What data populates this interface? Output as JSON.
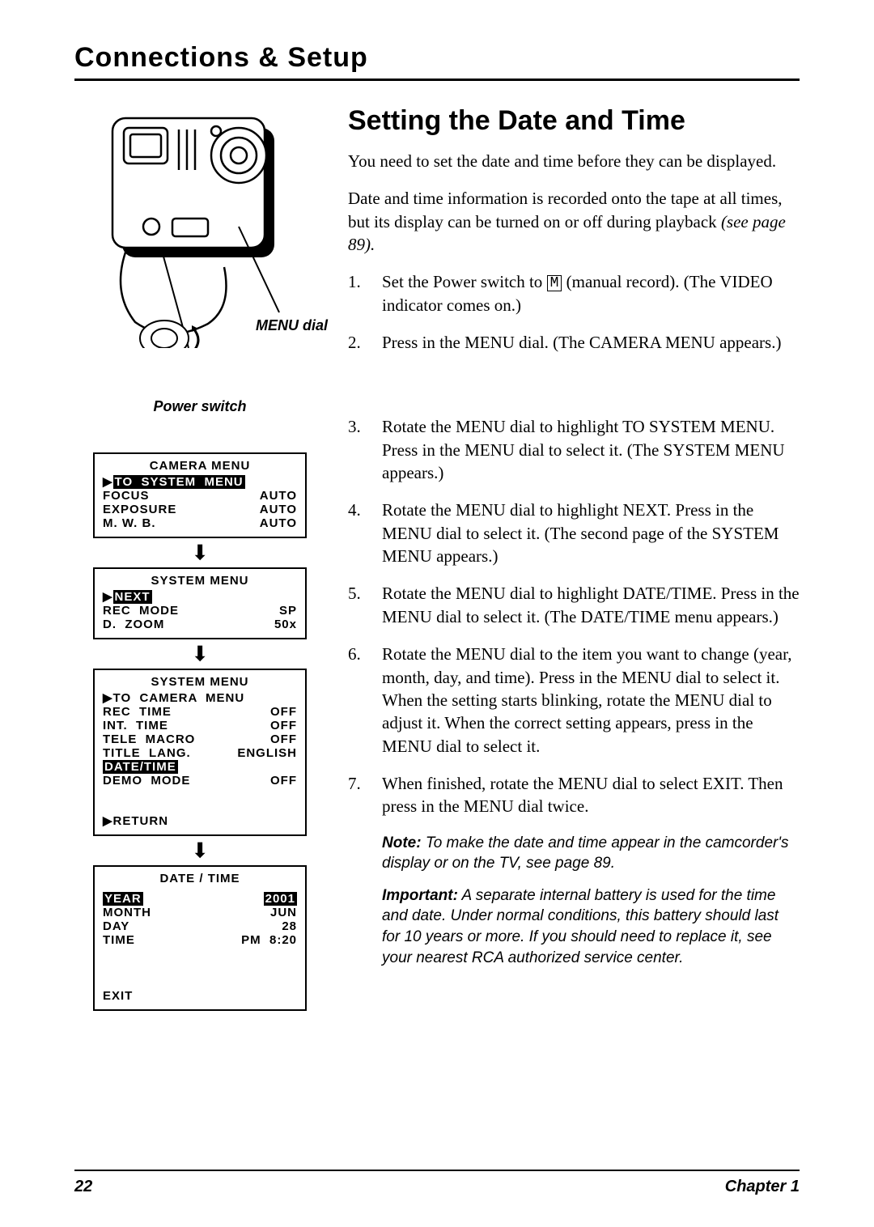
{
  "header": {
    "title": "Connections & Setup"
  },
  "illustration": {
    "menu_dial_label": "MENU dial",
    "power_switch_label": "Power switch"
  },
  "section": {
    "title": "Setting the Date and Time",
    "intro1": "You need to set the date and time before they can be displayed.",
    "intro2_a": "Date and time information is recorded onto the tape at all times, but its display can be turned on or off during playback ",
    "intro2_b": "(see page 89).",
    "steps": [
      {
        "n": "1.",
        "text_a": "Set the Power switch to ",
        "text_b": " (manual record). (The VIDEO indicator comes on.)"
      },
      {
        "n": "2.",
        "text_a": "Press in the MENU dial. (The ",
        "italic1": "CAMERA MENU",
        "text_b": " appears.)"
      },
      {
        "n": "3.",
        "text_a": "Rotate the MENU dial to highlight ",
        "italic1": "TO SYSTEM MENU",
        "text_b": ". Press in the MENU dial to select it. (The ",
        "italic2": "SYSTEM MENU",
        "text_c": " appears.)"
      },
      {
        "n": "4.",
        "text_a": "Rotate the MENU dial to highlight ",
        "italic1": "NEXT",
        "text_b": ". Press in the MENU dial to select it. (The second page of the ",
        "italic2": "SYSTEM MENU",
        "text_c": " appears.)"
      },
      {
        "n": "5.",
        "text_a": "Rotate the MENU dial to highlight ",
        "italic1": "DATE/TIME",
        "text_b": ". Press in the MENU dial to select it. (The ",
        "italic2": "DATE/TIME",
        "text_c": " menu appears.)"
      },
      {
        "n": "6.",
        "text_a": "Rotate the MENU dial to the item you want to change (year, month, day, and time). Press in the MENU dial to select it. When the setting starts blinking, rotate the MENU dial to adjust it. When the correct setting appears, press in the MENU dial to select it."
      },
      {
        "n": "7.",
        "text_a": "When finished, rotate the MENU dial to select ",
        "italic1": "EXIT",
        "text_b": ". Then press in the MENU dial twice."
      }
    ],
    "note_label": "Note:",
    "note_text": " To make the date and time appear in the camcorder's display or on the TV, see page 89.",
    "important_label": "Important:",
    "important_text": " A separate internal battery is used for the time and date. Under normal conditions, this battery should last for 10 years or more. If you should need to replace it, see your nearest RCA authorized service center."
  },
  "menus": {
    "camera": {
      "title": "CAMERA  MENU",
      "rows": [
        {
          "left": "TO  SYSTEM  MENU",
          "right": "",
          "hilite": true,
          "cursor": true
        },
        {
          "left": "FOCUS",
          "right": "AUTO"
        },
        {
          "left": "EXPOSURE",
          "right": "AUTO"
        },
        {
          "left": "M. W. B.",
          "right": "AUTO"
        }
      ]
    },
    "system1": {
      "title": "SYSTEM  MENU",
      "rows": [
        {
          "left": "NEXT",
          "right": "",
          "hilite": true,
          "cursor": true
        },
        {
          "left": "REC  MODE",
          "right": "SP"
        },
        {
          "left": "D.  ZOOM",
          "right": "50x"
        }
      ]
    },
    "system2": {
      "title": "SYSTEM  MENU",
      "rows": [
        {
          "left": "TO  CAMERA  MENU",
          "right": "",
          "cursor": true
        },
        {
          "left": "REC  TIME",
          "right": "OFF"
        },
        {
          "left": "INT.  TIME",
          "right": "OFF"
        },
        {
          "left": "TELE  MACRO",
          "right": "OFF"
        },
        {
          "left": "TITLE  LANG.",
          "right": "ENGLISH"
        },
        {
          "left": "DATE/TIME",
          "right": "",
          "hilite": true
        },
        {
          "left": "DEMO  MODE",
          "right": "OFF"
        }
      ],
      "return": "RETURN"
    },
    "datetime": {
      "title": "DATE / TIME",
      "rows": [
        {
          "left": "YEAR",
          "right": "2001",
          "hilite_left": true,
          "hilite_right": true
        },
        {
          "left": "MONTH",
          "right": "JUN"
        },
        {
          "left": "DAY",
          "right": "28"
        },
        {
          "left": "TIME",
          "right": "PM  8:20"
        }
      ],
      "exit": "EXIT"
    }
  },
  "footer": {
    "page": "22",
    "chapter": "Chapter 1"
  },
  "style": {
    "text_color": "#000000",
    "bg_color": "#ffffff"
  }
}
